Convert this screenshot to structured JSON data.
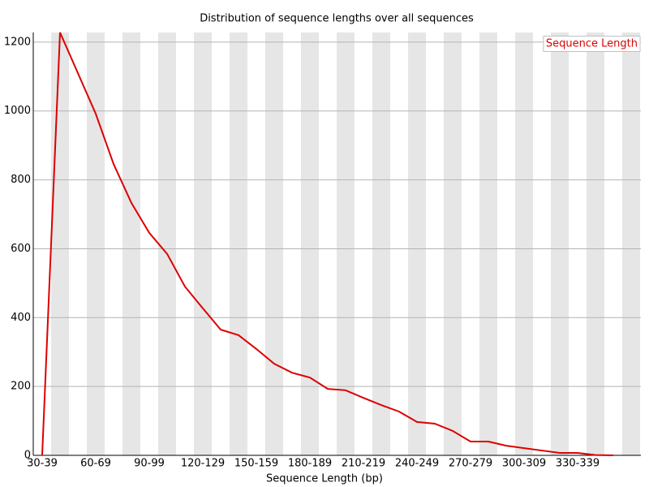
{
  "chart_data": {
    "type": "line",
    "title": "Distribution of sequence lengths over all sequences",
    "xlabel": "Sequence Length (bp)",
    "categories": [
      "30-39",
      null,
      null,
      "60-69",
      null,
      null,
      "90-99",
      null,
      null,
      "120-129",
      null,
      null,
      "150-159",
      null,
      null,
      "180-189",
      null,
      null,
      "210-219",
      null,
      null,
      "240-249",
      null,
      null,
      "270-279",
      null,
      null,
      "300-309",
      null,
      null,
      "330-339",
      null,
      null
    ],
    "series": [
      {
        "name": "Sequence Length",
        "color": "#dd0000",
        "values": [
          0,
          1228,
          1110,
          992,
          846,
          733,
          646,
          585,
          490,
          427,
          365,
          349,
          309,
          266,
          240,
          226,
          193,
          189,
          167,
          146,
          127,
          97,
          92,
          71,
          40,
          40,
          28,
          21,
          14,
          7,
          7,
          1,
          0
        ]
      }
    ],
    "ylim": [
      0,
      1228
    ],
    "yticks": [
      0,
      200,
      400,
      600,
      800,
      1000,
      1200
    ],
    "grid": true,
    "legend": "top-right"
  }
}
